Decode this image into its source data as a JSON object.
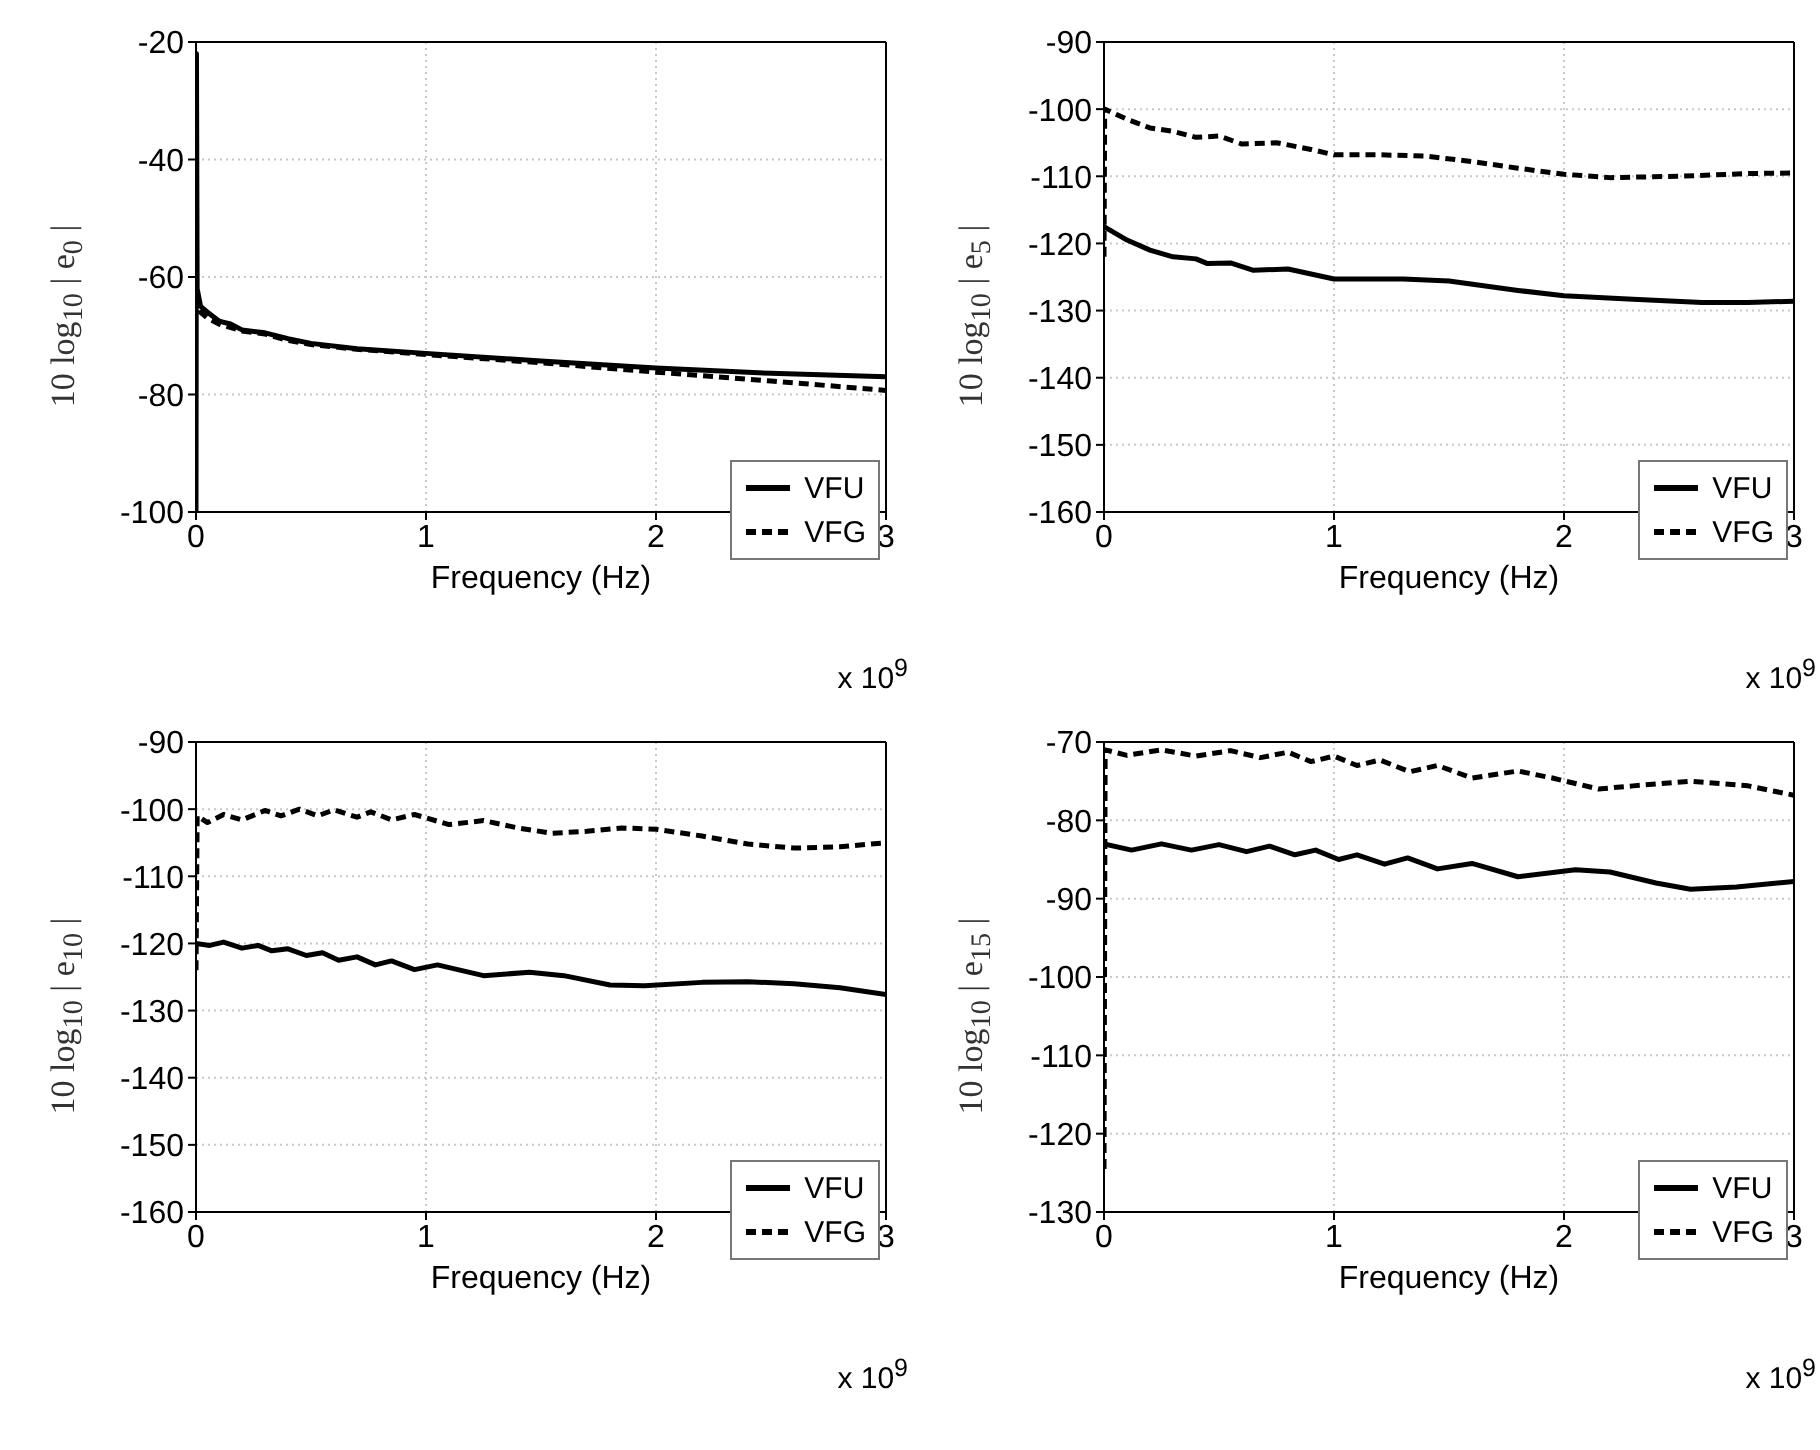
{
  "chart_data": [
    {
      "type": "line",
      "xlabel": "Frequency (Hz)",
      "ylabel": "10 log$_{10}$ | e$_{0}$ |",
      "annotations": [
        "x 10$^{9}$"
      ],
      "xlim": [
        0,
        3
      ],
      "xticks": [
        0,
        1,
        2,
        3
      ],
      "ylim": [
        -100,
        -20
      ],
      "yticks": [
        -100,
        -80,
        -60,
        -40,
        -20
      ],
      "grid": true,
      "legend": "bottom right",
      "marker": "none",
      "series": [
        {
          "name": "VFU",
          "color": "#000000",
          "line_style": "solid",
          "x": [
            0,
            0.002,
            0.005,
            0.02,
            0.05,
            0.1,
            0.15,
            0.2,
            0.3,
            0.4,
            0.5,
            0.7,
            1,
            1.5,
            2,
            2.5,
            3
          ],
          "values": [
            -100,
            -22,
            -62,
            -65,
            -66,
            -67.5,
            -68,
            -69,
            -69.5,
            -70.5,
            -71.3,
            -72.2,
            -73,
            -74.3,
            -75.5,
            -76.4,
            -77
          ]
        },
        {
          "name": "VFG",
          "color": "#000000",
          "line_style": "dashed",
          "x": [
            0,
            0.02,
            0.05,
            0.1,
            0.2,
            0.3,
            0.4,
            0.5,
            0.7,
            1,
            1.5,
            2,
            2.5,
            3
          ],
          "values": [
            -63,
            -66,
            -67,
            -68,
            -69.2,
            -69.7,
            -70.8,
            -71.5,
            -72.3,
            -73.2,
            -74.6,
            -76.2,
            -77.7,
            -79.3
          ]
        }
      ]
    },
    {
      "type": "line",
      "xlabel": "Frequency (Hz)",
      "ylabel": "10 log$_{10}$ | e$_{5}$ |",
      "annotations": [
        "x 10$^{9}$"
      ],
      "xlim": [
        0,
        3
      ],
      "xticks": [
        0,
        1,
        2,
        3
      ],
      "ylim": [
        -160,
        -90
      ],
      "yticks": [
        -160,
        -150,
        -140,
        -130,
        -120,
        -110,
        -100,
        -90
      ],
      "grid": true,
      "legend": "bottom right",
      "marker": "none",
      "series": [
        {
          "name": "VFU",
          "color": "#000000",
          "line_style": "solid",
          "x": [
            0,
            0.1,
            0.2,
            0.3,
            0.4,
            0.45,
            0.55,
            0.65,
            0.8,
            1,
            1.3,
            1.5,
            1.8,
            2,
            2.3,
            2.6,
            2.8,
            3
          ],
          "values": [
            -117.5,
            -119.5,
            -121,
            -122,
            -122.3,
            -123,
            -122.9,
            -124,
            -123.8,
            -125.3,
            -125.3,
            -125.6,
            -127,
            -127.8,
            -128.3,
            -128.8,
            -128.8,
            -128.6
          ]
        },
        {
          "name": "VFG",
          "color": "#000000",
          "line_style": "dashed",
          "x": [
            0,
            0.003,
            0.1,
            0.2,
            0.3,
            0.4,
            0.5,
            0.6,
            0.75,
            0.9,
            1,
            1.2,
            1.4,
            1.6,
            1.8,
            2,
            2.2,
            2.5,
            2.8,
            3
          ],
          "values": [
            -122,
            -100,
            -101.5,
            -102.8,
            -103.3,
            -104.2,
            -104,
            -105.2,
            -105,
            -106,
            -106.8,
            -106.8,
            -107,
            -107.8,
            -108.8,
            -109.7,
            -110.2,
            -110,
            -109.6,
            -109.5
          ]
        }
      ]
    },
    {
      "type": "line",
      "xlabel": "Frequency (Hz)",
      "ylabel": "10 log$_{10}$ | e$_{10}$ |",
      "annotations": [
        "x 10$^{9}$"
      ],
      "xlim": [
        0,
        3
      ],
      "xticks": [
        0,
        1,
        2,
        3
      ],
      "ylim": [
        -160,
        -90
      ],
      "yticks": [
        -160,
        -150,
        -140,
        -130,
        -120,
        -110,
        -100,
        -90
      ],
      "grid": true,
      "legend": "bottom right",
      "marker": "none",
      "series": [
        {
          "name": "VFU",
          "color": "#000000",
          "line_style": "solid",
          "x": [
            0,
            0.06,
            0.12,
            0.2,
            0.27,
            0.33,
            0.4,
            0.48,
            0.55,
            0.62,
            0.7,
            0.78,
            0.85,
            0.95,
            1.05,
            1.25,
            1.45,
            1.6,
            1.8,
            1.95,
            2.2,
            2.4,
            2.6,
            2.8,
            3
          ],
          "values": [
            -120,
            -120.3,
            -119.8,
            -120.7,
            -120.3,
            -121.1,
            -120.8,
            -121.8,
            -121.4,
            -122.5,
            -122,
            -123.2,
            -122.6,
            -123.9,
            -123.2,
            -124.8,
            -124.3,
            -124.8,
            -126.2,
            -126.3,
            -125.8,
            -125.7,
            -126,
            -126.6,
            -127.6
          ]
        },
        {
          "name": "VFG",
          "color": "#000000",
          "line_style": "dashed",
          "x": [
            0,
            0.005,
            0.05,
            0.12,
            0.2,
            0.3,
            0.37,
            0.45,
            0.53,
            0.6,
            0.7,
            0.76,
            0.85,
            0.95,
            1.1,
            1.25,
            1.4,
            1.55,
            1.7,
            1.85,
            2,
            2.2,
            2.4,
            2.6,
            2.8,
            3
          ],
          "values": [
            -124,
            -101,
            -102,
            -100.8,
            -101.6,
            -100.2,
            -101,
            -100,
            -101,
            -100.1,
            -101.2,
            -100.4,
            -101.6,
            -100.8,
            -102.3,
            -101.7,
            -102.8,
            -103.6,
            -103.3,
            -102.8,
            -103,
            -104,
            -105.2,
            -105.8,
            -105.6,
            -105
          ]
        }
      ]
    },
    {
      "type": "line",
      "xlabel": "Frequency (Hz)",
      "ylabel": "10 log$_{10}$ | e$_{15}$ |",
      "annotations": [
        "x 10$^{9}$"
      ],
      "xlim": [
        0,
        3
      ],
      "xticks": [
        0,
        1,
        2,
        3
      ],
      "ylim": [
        -130,
        -70
      ],
      "yticks": [
        -130,
        -120,
        -110,
        -100,
        -90,
        -80,
        -70
      ],
      "grid": true,
      "legend": "bottom right",
      "marker": "none",
      "series": [
        {
          "name": "VFU",
          "color": "#000000",
          "line_style": "solid",
          "x": [
            0,
            0.12,
            0.25,
            0.38,
            0.5,
            0.62,
            0.72,
            0.83,
            0.92,
            1.02,
            1.1,
            1.22,
            1.32,
            1.45,
            1.6,
            1.8,
            2.05,
            2.2,
            2.4,
            2.55,
            2.75,
            3
          ],
          "values": [
            -83,
            -83.8,
            -83,
            -83.8,
            -83.1,
            -84,
            -83.3,
            -84.4,
            -83.8,
            -85,
            -84.4,
            -85.6,
            -84.8,
            -86.2,
            -85.5,
            -87.2,
            -86.3,
            -86.6,
            -88,
            -88.8,
            -88.5,
            -87.8
          ]
        },
        {
          "name": "VFG",
          "color": "#000000",
          "line_style": "dashed",
          "x": [
            0,
            0.005,
            0.1,
            0.25,
            0.4,
            0.55,
            0.68,
            0.8,
            0.9,
            1,
            1.1,
            1.2,
            1.33,
            1.45,
            1.6,
            1.8,
            1.95,
            2.15,
            2.3,
            2.55,
            2.8,
            3
          ],
          "values": [
            -124.5,
            -71,
            -71.7,
            -71,
            -71.8,
            -71.1,
            -72,
            -71.3,
            -72.5,
            -71.8,
            -73,
            -72.3,
            -73.8,
            -73,
            -74.6,
            -73.7,
            -74.6,
            -76,
            -75.6,
            -75,
            -75.6,
            -76.8
          ]
        }
      ]
    }
  ]
}
